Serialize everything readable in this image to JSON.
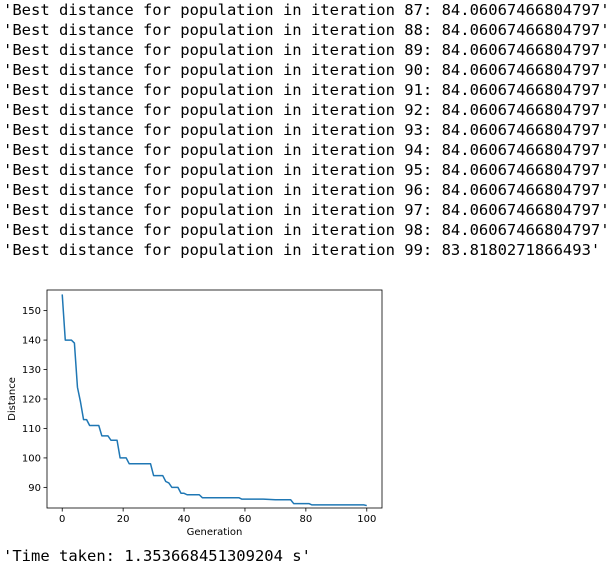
{
  "log_lines": [
    "'Best distance for population in iteration 87: 84.06067466804797'",
    "'Best distance for population in iteration 88: 84.06067466804797'",
    "'Best distance for population in iteration 89: 84.06067466804797'",
    "'Best distance for population in iteration 90: 84.06067466804797'",
    "'Best distance for population in iteration 91: 84.06067466804797'",
    "'Best distance for population in iteration 92: 84.06067466804797'",
    "'Best distance for population in iteration 93: 84.06067466804797'",
    "'Best distance for population in iteration 94: 84.06067466804797'",
    "'Best distance for population in iteration 95: 84.06067466804797'",
    "'Best distance for population in iteration 96: 84.06067466804797'",
    "'Best distance for population in iteration 97: 84.06067466804797'",
    "'Best distance for population in iteration 98: 84.06067466804797'",
    "'Best distance for population in iteration 99: 83.8180271866493'"
  ],
  "time_taken": "'Time taken: 1.353668451309204 s'",
  "chart_data": {
    "type": "line",
    "title": "",
    "xlabel": "Generation",
    "ylabel": "Distance",
    "xlim": [
      -5,
      105
    ],
    "ylim": [
      83,
      157
    ],
    "xticks": [
      0,
      20,
      40,
      60,
      80,
      100
    ],
    "yticks": [
      90,
      100,
      110,
      120,
      130,
      140,
      150
    ],
    "grid": false,
    "line_color": "#1f77b4",
    "series": [
      {
        "x": [
          0,
          1,
          2,
          3,
          4,
          5,
          6,
          7,
          8,
          9,
          10,
          11,
          12,
          13,
          14,
          15,
          16,
          17,
          18,
          19,
          20,
          21,
          22,
          23,
          24,
          25,
          26,
          27,
          28,
          29,
          30,
          31,
          32,
          33,
          34,
          35,
          36,
          37,
          38,
          39,
          40,
          41,
          42,
          43,
          44,
          45,
          46,
          47,
          48,
          49,
          50,
          55,
          58,
          59,
          62,
          65,
          66,
          70,
          75,
          76,
          80,
          81,
          82,
          85,
          90,
          95,
          99,
          100
        ],
        "y": [
          155.5,
          140,
          140,
          140,
          139,
          124,
          119,
          113,
          113,
          111,
          111,
          111,
          111,
          107.5,
          107.5,
          107.5,
          106,
          106,
          106,
          100,
          100,
          100,
          98,
          98,
          98,
          98,
          98,
          98,
          98,
          98,
          94,
          94,
          94,
          94,
          92,
          91.5,
          90,
          90,
          90,
          88,
          88,
          87.5,
          87.5,
          87.5,
          87.5,
          87.5,
          86.5,
          86.5,
          86.5,
          86.5,
          86.5,
          86.5,
          86.5,
          86,
          86,
          86,
          86,
          85.8,
          85.8,
          84.5,
          84.5,
          84.5,
          84.06,
          84.06,
          84.06,
          84.06,
          84.06,
          83.82
        ]
      }
    ]
  }
}
